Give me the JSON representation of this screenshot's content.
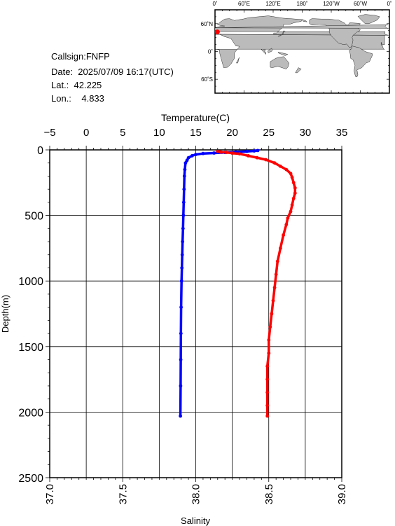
{
  "info": {
    "callsign": "Callsign:FNFP",
    "date": "Date:  2025/07/09 16:17(UTC)",
    "lat": "Lat.:  42.225",
    "lon": "Lon.:    4.833"
  },
  "map": {
    "lon_labels": [
      "0˚",
      "60˚E",
      "120˚E",
      "180˚",
      "120˚W",
      "60˚W",
      "0˚"
    ],
    "lat_labels": [
      "60˚N",
      "0˚",
      "60˚S"
    ],
    "marker": {
      "lat": 42.225,
      "lon": 4.833,
      "color": "#ff0000"
    },
    "ocean_color": "#ffffff",
    "land_color": "#bbbbbb"
  },
  "chart_data": {
    "type": "line",
    "title": "",
    "ylabel": "Depth(m)",
    "y_range": [
      0,
      2500
    ],
    "y_ticks": [
      0,
      500,
      1000,
      1500,
      2000,
      2500
    ],
    "y_inverted": true,
    "top_axis": {
      "label": "Temperature(C)",
      "range": [
        -5,
        35
      ],
      "ticks": [
        -5,
        0,
        5,
        10,
        15,
        20,
        25,
        30,
        35
      ]
    },
    "bottom_axis": {
      "label": "Salinity",
      "range": [
        37.0,
        39.0
      ],
      "ticks": [
        "37.0",
        "37.5",
        "38.0",
        "38.5",
        "39.0"
      ]
    },
    "grid": true,
    "series": [
      {
        "axis": "temperature",
        "color": "#0000ff",
        "points": [
          [
            23.5,
            5
          ],
          [
            23.0,
            8
          ],
          [
            22.0,
            12
          ],
          [
            20.5,
            16
          ],
          [
            19.0,
            20
          ],
          [
            17.5,
            24
          ],
          [
            16.0,
            28
          ],
          [
            15.0,
            35
          ],
          [
            14.5,
            45
          ],
          [
            14.0,
            60
          ],
          [
            13.8,
            80
          ],
          [
            13.6,
            100
          ],
          [
            13.5,
            150
          ],
          [
            13.45,
            200
          ],
          [
            13.4,
            300
          ],
          [
            13.35,
            400
          ],
          [
            13.3,
            500
          ],
          [
            13.25,
            600
          ],
          [
            13.2,
            700
          ],
          [
            13.15,
            800
          ],
          [
            13.1,
            900
          ],
          [
            13.05,
            1000
          ],
          [
            13.0,
            1200
          ],
          [
            12.97,
            1400
          ],
          [
            12.95,
            1600
          ],
          [
            12.93,
            1800
          ],
          [
            12.9,
            2030
          ]
        ]
      },
      {
        "axis": "salinity",
        "color": "#ff0000",
        "points": [
          [
            38.15,
            12
          ],
          [
            38.17,
            16
          ],
          [
            38.21,
            20
          ],
          [
            38.25,
            25
          ],
          [
            38.3,
            30
          ],
          [
            38.36,
            45
          ],
          [
            38.42,
            60
          ],
          [
            38.48,
            75
          ],
          [
            38.54,
            100
          ],
          [
            38.58,
            125
          ],
          [
            38.62,
            150
          ],
          [
            38.65,
            180
          ],
          [
            38.66,
            210
          ],
          [
            38.67,
            250
          ],
          [
            38.68,
            290
          ],
          [
            38.68,
            330
          ],
          [
            38.67,
            370
          ],
          [
            38.66,
            420
          ],
          [
            38.65,
            470
          ],
          [
            38.63,
            520
          ],
          [
            38.62,
            570
          ],
          [
            38.6,
            650
          ],
          [
            38.58,
            750
          ],
          [
            38.56,
            850
          ],
          [
            38.55,
            950
          ],
          [
            38.54,
            1050
          ],
          [
            38.53,
            1150
          ],
          [
            38.52,
            1250
          ],
          [
            38.51,
            1350
          ],
          [
            38.5,
            1450
          ],
          [
            38.5,
            1550
          ],
          [
            38.49,
            1650
          ],
          [
            38.49,
            1750
          ],
          [
            38.49,
            1850
          ],
          [
            38.49,
            1950
          ],
          [
            38.49,
            2030
          ]
        ]
      }
    ]
  }
}
